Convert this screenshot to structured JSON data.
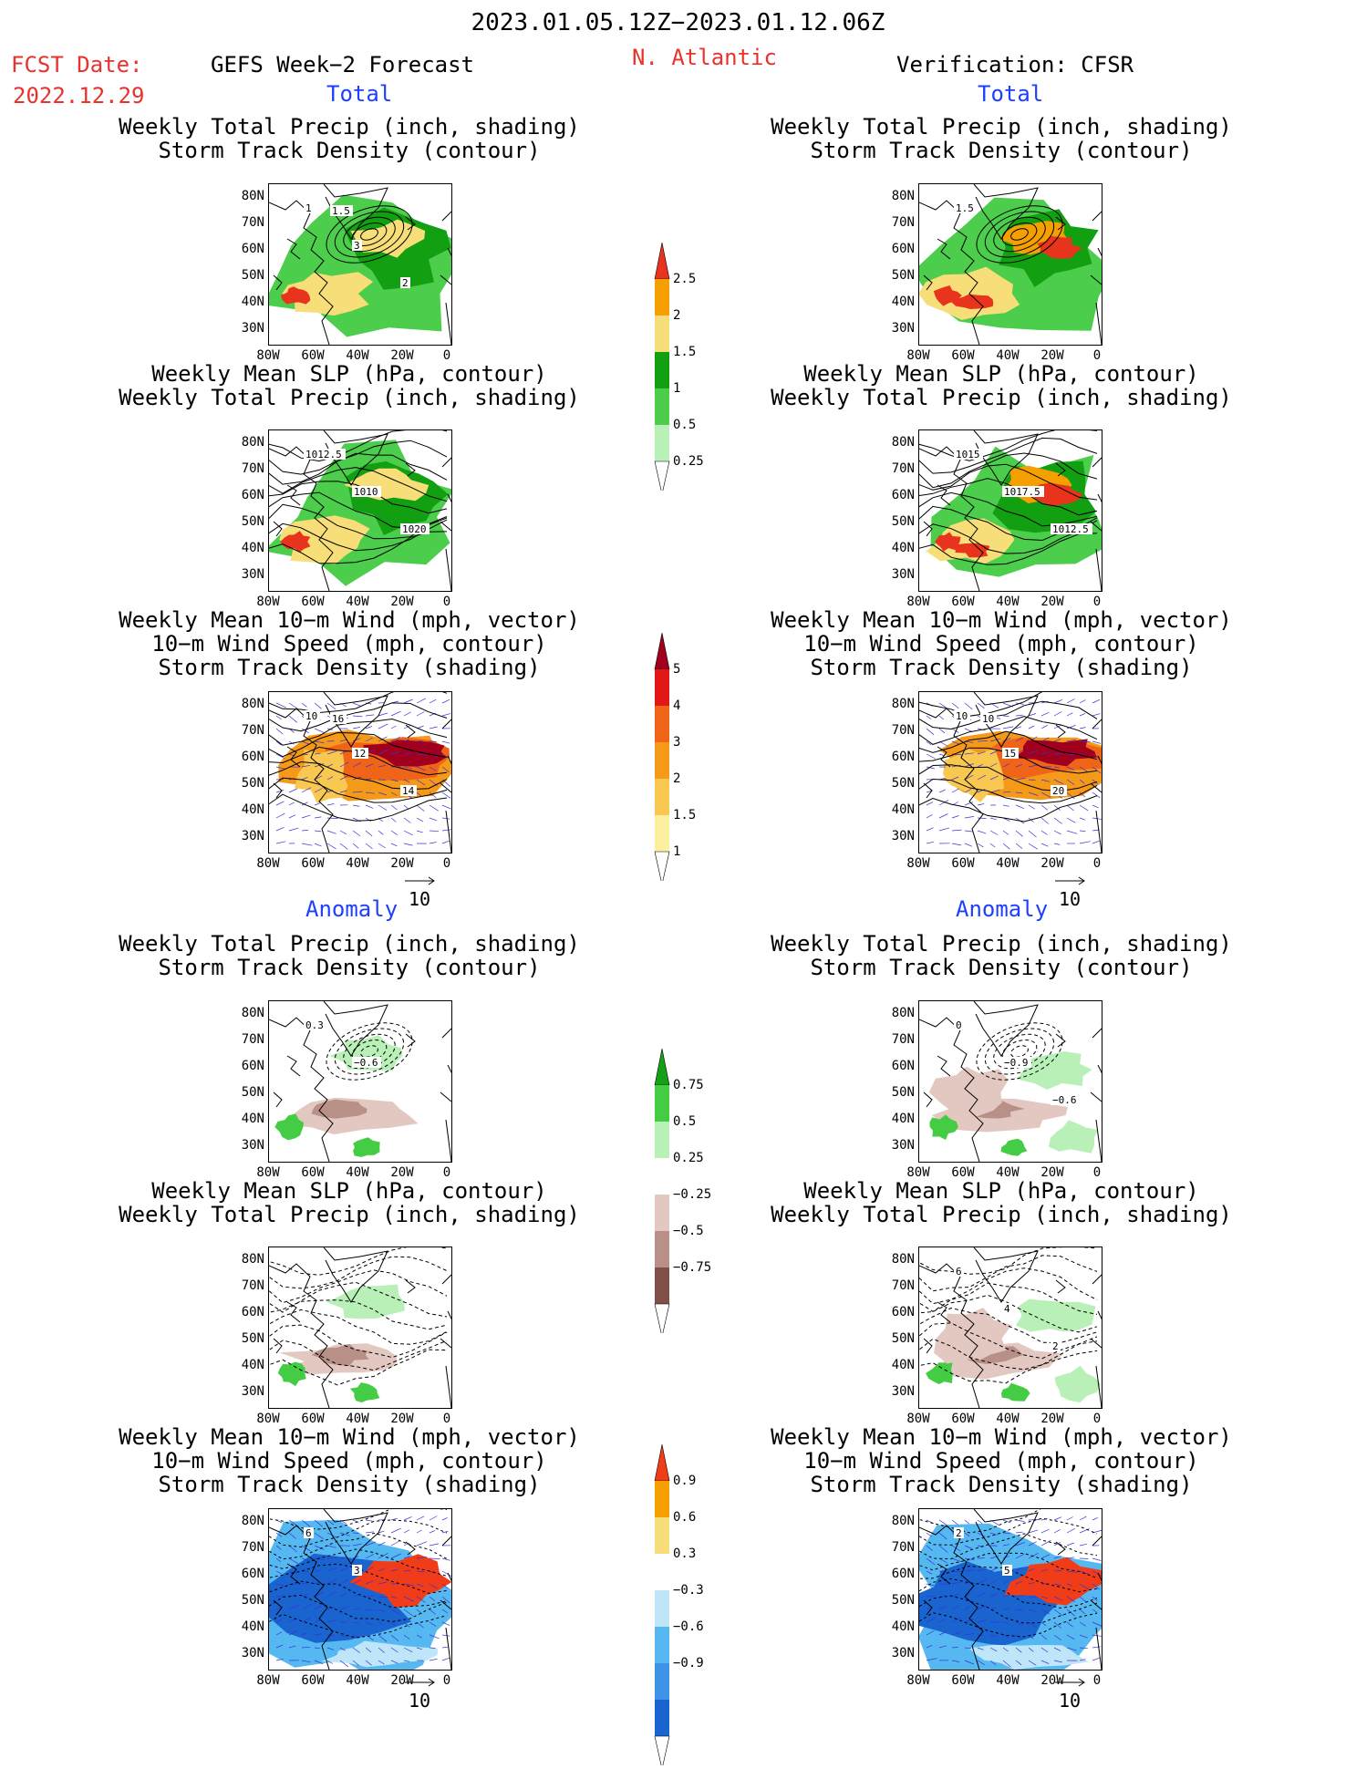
{
  "header": {
    "date_range": "2023.01.05.12Z−2023.01.12.06Z",
    "fcst_label": "FCST Date:",
    "fcst_date": "2022.12.29",
    "left_title": "GEFS Week−2 Forecast",
    "region": "N. Atlantic",
    "right_title": "Verification: CFSR"
  },
  "sections": {
    "total": "Total",
    "anomaly": "Anomaly"
  },
  "panel_titles": {
    "precip_track": [
      "Weekly Total Precip (inch, shading)",
      "Storm Track Density (contour)"
    ],
    "slp_precip": [
      "Weekly Mean SLP (hPa, contour)",
      "Weekly Total Precip (inch, shading)"
    ],
    "wind_track": [
      "Weekly Mean 10−m Wind (mph, vector)",
      "10−m Wind Speed (mph, contour)",
      "Storm Track Density (shading)"
    ]
  },
  "axes": {
    "lat_labels": [
      "80N",
      "70N",
      "60N",
      "50N",
      "40N",
      "30N"
    ],
    "lon_labels": [
      "80W",
      "60W",
      "40W",
      "20W",
      "0"
    ]
  },
  "vector_ref": "10",
  "colorbars": {
    "precip_total": {
      "labels": [
        "2.5",
        "2",
        "1.5",
        "1",
        "0.5",
        "0.25"
      ],
      "colors": [
        "#e8341c",
        "#f5a000",
        "#f8de78",
        "#12a012",
        "#4ccd4c",
        "#b8f0b8"
      ]
    },
    "track_total": {
      "labels": [
        "5",
        "4",
        "3",
        "2",
        "1.5",
        "1"
      ],
      "colors": [
        "#a0001e",
        "#e01818",
        "#f06418",
        "#f59a18",
        "#f8c850",
        "#fcf0a0"
      ]
    },
    "precip_anom": {
      "labels": [
        "0.75",
        "0.5",
        "0.25",
        "−0.25",
        "−0.5",
        "−0.75"
      ],
      "colors": [
        "#16a016",
        "#44cc44",
        "#b8f0b8",
        "#ffffff",
        "#e2c8c0",
        "#b89088",
        "#805048"
      ]
    },
    "track_anom": {
      "labels": [
        "0.9",
        "0.6",
        "0.3",
        "−0.3",
        "−0.6",
        "−0.9"
      ],
      "colors": [
        "#f03c18",
        "#f5a000",
        "#f8de78",
        "#ffffff",
        "#bfe6f8",
        "#55b8f0",
        "#3f92e6",
        "#1a64d0"
      ]
    }
  },
  "panel_labels": {
    "gefs_total_precip": [
      "1",
      "3",
      "2",
      "1.5"
    ],
    "cfsr_total_precip": [
      "1.5"
    ],
    "gefs_total_slp": [
      "1012.5",
      "1010",
      "1020"
    ],
    "cfsr_total_slp": [
      "1015",
      "1017.5",
      "1012.5"
    ],
    "gefs_total_wind": [
      "10",
      "12",
      "14",
      "16"
    ],
    "cfsr_total_wind": [
      "10",
      "15",
      "20",
      "10"
    ],
    "gefs_anom_precip": [
      "0.3",
      "−0.6"
    ],
    "cfsr_anom_precip": [
      "0",
      "−0.9",
      "−0.6"
    ],
    "gefs_anom_slp": [],
    "cfsr_anom_slp": [
      "6",
      "4",
      "2"
    ],
    "gefs_anom_wind": [
      "6",
      "3"
    ],
    "cfsr_anom_wind": [
      "2",
      "5"
    ]
  }
}
